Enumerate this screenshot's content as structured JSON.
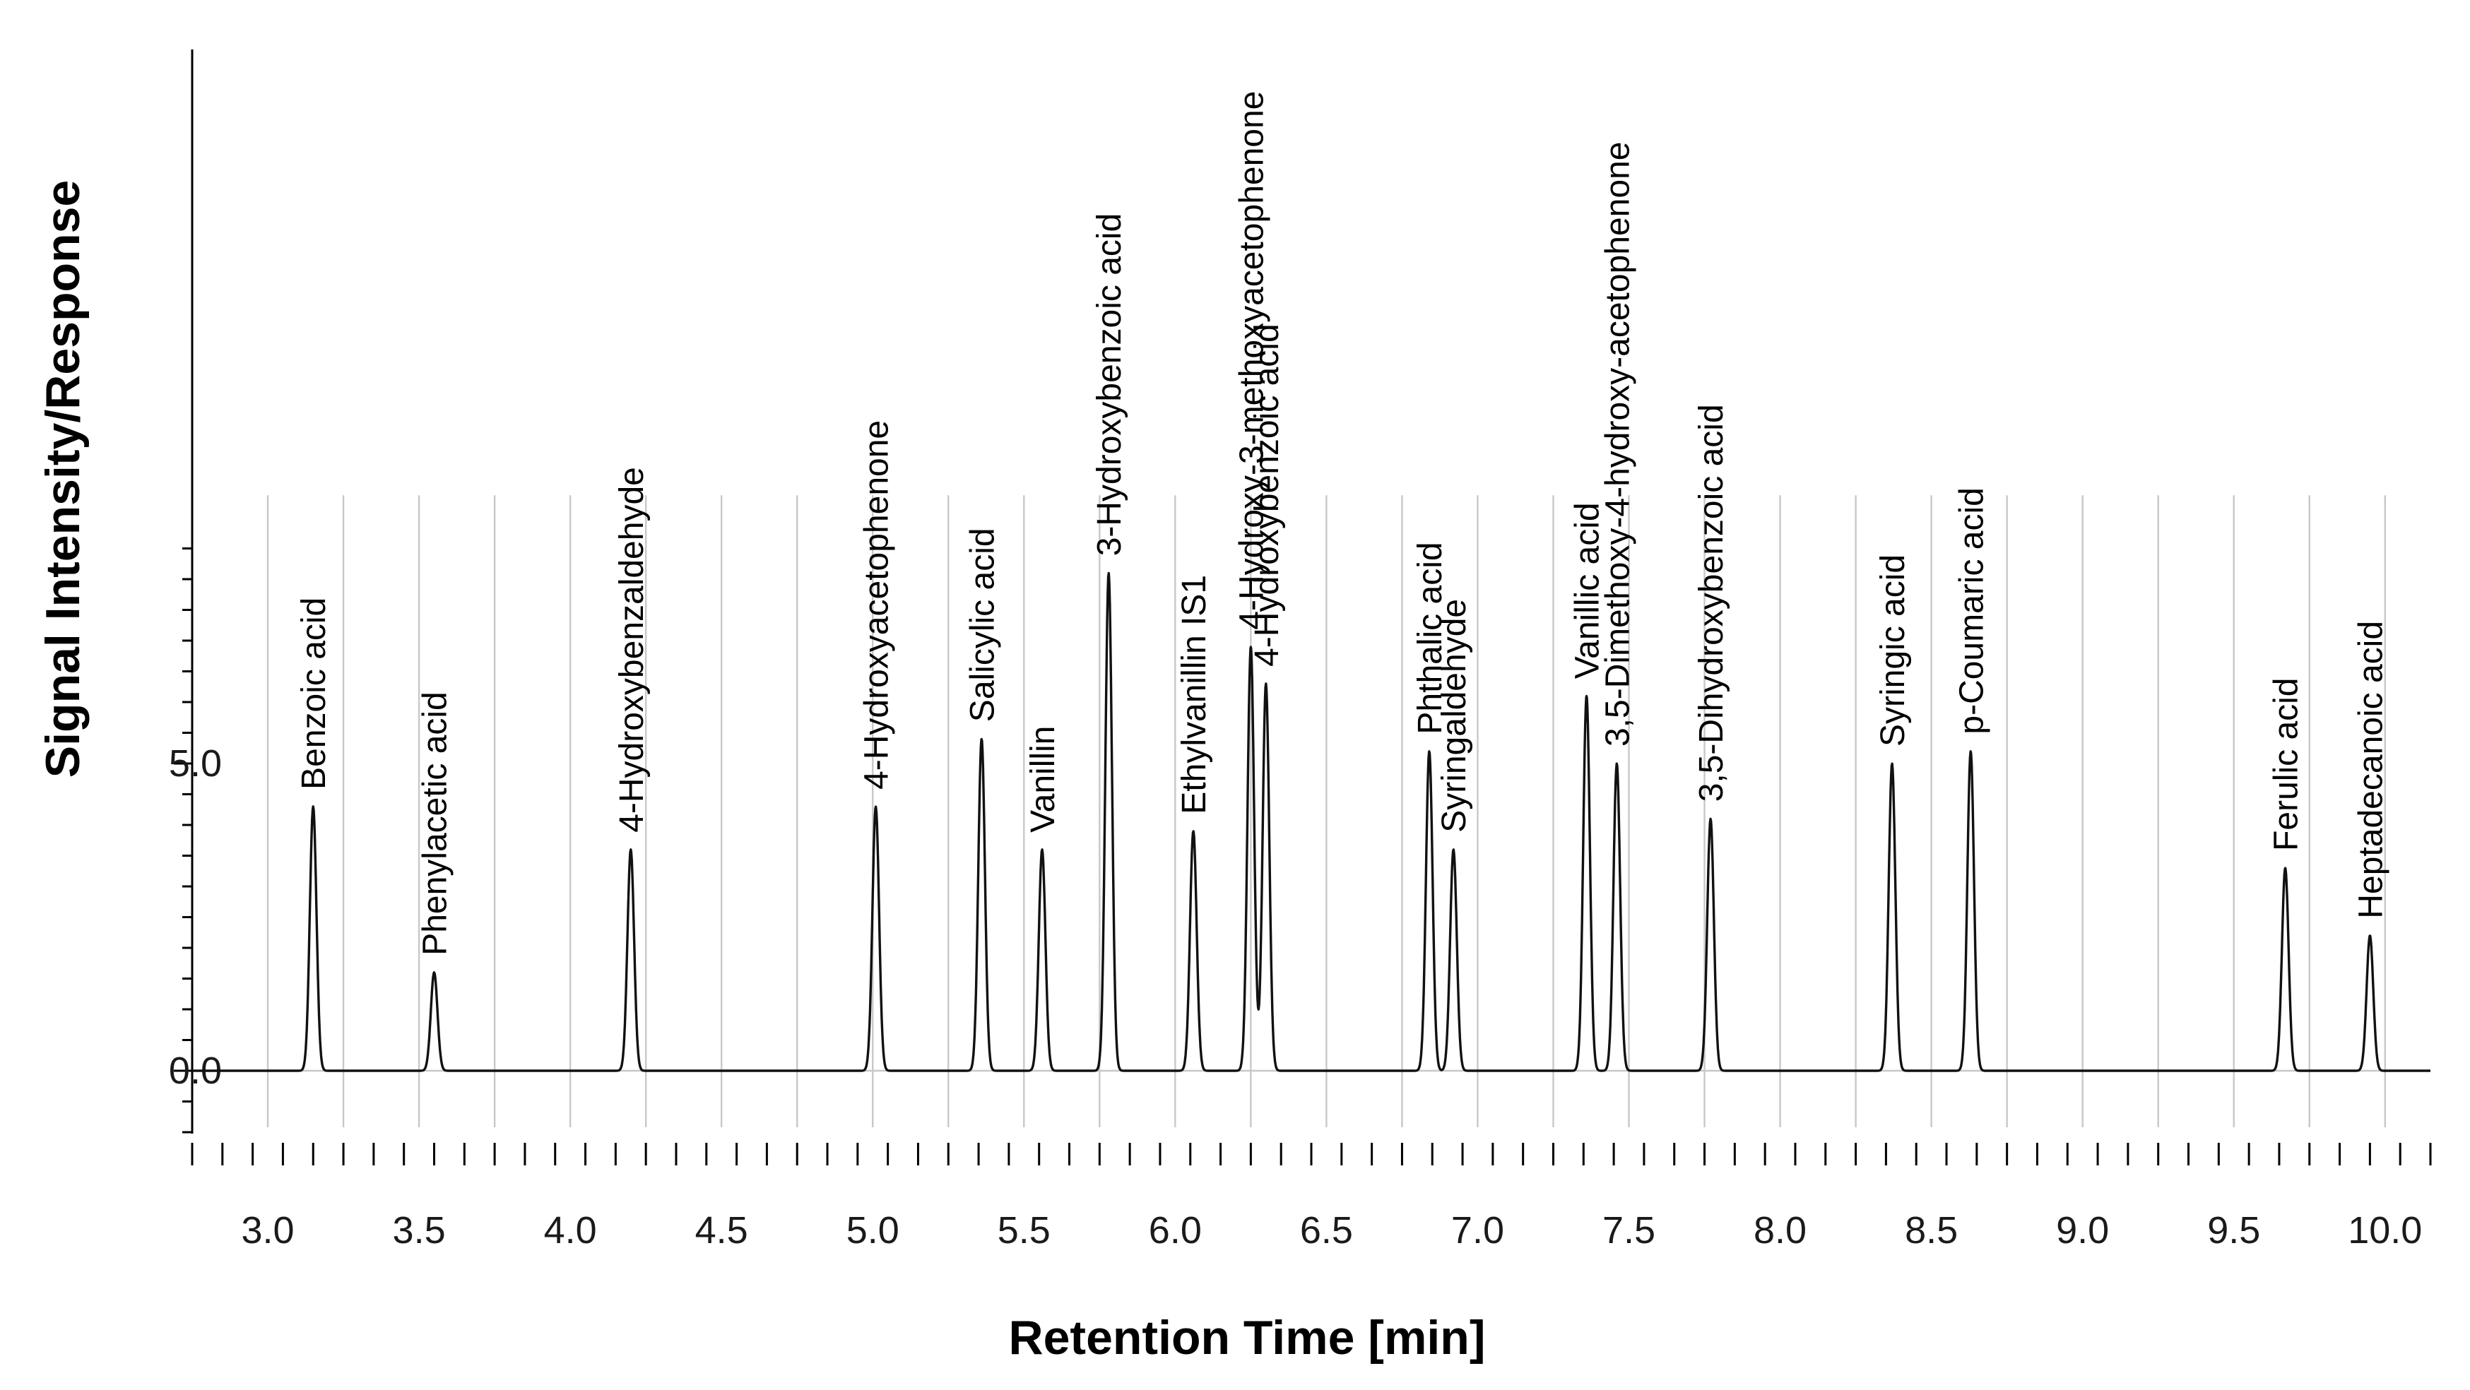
{
  "chart_data": {
    "type": "line",
    "title": "",
    "xlabel": "Retention Time [min]",
    "ylabel": "Signal Intensity/Response",
    "xlim": [
      2.75,
      10.15
    ],
    "ylim": [
      -1.0,
      16.5
    ],
    "x_ticks": [
      "3.0",
      "3.5",
      "4.0",
      "4.5",
      "5.0",
      "5.5",
      "6.0",
      "6.5",
      "7.0",
      "7.5",
      "8.0",
      "8.5",
      "9.0",
      "9.5",
      "10.0"
    ],
    "y_ticks": [
      "0.0",
      "5.0"
    ],
    "grid": true,
    "peaks": [
      {
        "name": "Benzoic acid",
        "rt": 3.15,
        "height": 4.3
      },
      {
        "name": "Phenylacetic acid",
        "rt": 3.55,
        "height": 1.6
      },
      {
        "name": "4-Hydroxybenzaldehyde",
        "rt": 4.2,
        "height": 3.6
      },
      {
        "name": "4-Hydroxyacetophenone",
        "rt": 5.01,
        "height": 4.3
      },
      {
        "name": "Salicylic acid",
        "rt": 5.36,
        "height": 5.4
      },
      {
        "name": "Vanillin",
        "rt": 5.56,
        "height": 3.6
      },
      {
        "name": "3-Hydroxybenzoic acid",
        "rt": 5.78,
        "height": 8.1
      },
      {
        "name": "Ethylvanillin IS1",
        "rt": 6.06,
        "height": 3.9
      },
      {
        "name": "4-Hydroxy-3-methoxyacetophenone",
        "rt": 6.25,
        "height": 6.9
      },
      {
        "name": "4-Hydroxybenzoic acid",
        "rt": 6.3,
        "height": 6.3
      },
      {
        "name": "Phthalic acid",
        "rt": 6.84,
        "height": 5.2
      },
      {
        "name": "Syringaldehyde",
        "rt": 6.92,
        "height": 3.6
      },
      {
        "name": "Vanillic acid",
        "rt": 7.36,
        "height": 6.1
      },
      {
        "name": "3,5-Dimethoxy-4-hydroxy-acetophenone",
        "rt": 7.46,
        "height": 5.0
      },
      {
        "name": "3,5-Dihydroxybenzoic acid",
        "rt": 7.77,
        "height": 4.1
      },
      {
        "name": "Syringic acid",
        "rt": 8.37,
        "height": 5.0
      },
      {
        "name": "p-Coumaric acid",
        "rt": 8.63,
        "height": 5.2
      },
      {
        "name": "Ferulic acid",
        "rt": 9.67,
        "height": 3.3
      },
      {
        "name": "Heptadecanoic acid",
        "rt": 9.95,
        "height": 2.2
      }
    ]
  }
}
